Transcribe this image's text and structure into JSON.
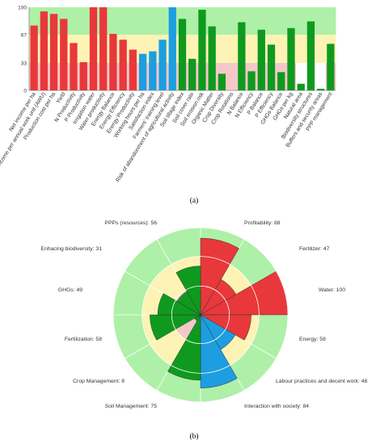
{
  "colors": {
    "red": "#e8383b",
    "green": "#0f9a1f",
    "blue": "#1d9ee0",
    "band_high": "#aef0a8",
    "band_mid": "#fdf3b4",
    "band_low": "#f5c8c8",
    "grid": "#cccccc"
  },
  "chart_data": [
    {
      "type": "bar",
      "caption": "(a)",
      "ylim": [
        0,
        100
      ],
      "yticks": [
        "0",
        "33",
        "67",
        "100"
      ],
      "bands": [
        {
          "from": 67,
          "to": 100,
          "color_key": "band_high"
        },
        {
          "from": 33,
          "to": 67,
          "color_key": "band_mid"
        },
        {
          "from": 0,
          "to": 33,
          "color_key": "band_low"
        }
      ],
      "categories": [
        "Net income per ha",
        "Net income per annual work unit (AWU)",
        "Production cost per ha",
        "Yield",
        "N Productivity",
        "P Productivity",
        "Irrigation water",
        "Water productivity",
        "Energy Balance",
        "Energy Efficiency",
        "Energy Productivity",
        "Working hours per ha",
        "Satisfaction index",
        "Farmers' training level",
        "Risk of abandonment of agricultural activity",
        "Soil tillage index",
        "Soil cover rate",
        "Soil erosion risk",
        "Organic Matter",
        "Crop Diversity",
        "Crop Rotations",
        "N Balance",
        "N Efficiency",
        "P Balance",
        "P Efficiency",
        "GHGs Balance",
        "GHGs per kg",
        "Natural area",
        "Biodiversity structures",
        "Buffers and security areas",
        "PPP management"
      ],
      "values": [
        78,
        95,
        92,
        86,
        57,
        34,
        100,
        100,
        68,
        61,
        49,
        44,
        47,
        61,
        100,
        86,
        38,
        97,
        77,
        20,
        0,
        82,
        23,
        73,
        55,
        22,
        75,
        8,
        83,
        2,
        56
      ],
      "colors": [
        "red",
        "red",
        "red",
        "red",
        "red",
        "red",
        "red",
        "red",
        "red",
        "red",
        "red",
        "blue",
        "blue",
        "blue",
        "blue",
        "green",
        "green",
        "green",
        "green",
        "green",
        "green",
        "green",
        "green",
        "green",
        "green",
        "green",
        "green",
        "green",
        "green",
        "green",
        "green"
      ],
      "band_mask": [
        "full",
        "full",
        "full",
        "full",
        "full",
        "full",
        "full",
        "full",
        "full",
        "full",
        "full",
        "full",
        "full",
        "full",
        "full",
        "full",
        "full",
        "full",
        "full",
        "full",
        "full",
        "full",
        "full",
        "full",
        "full",
        "full",
        "full",
        "no-low",
        "no-low",
        "no-low",
        "full"
      ]
    },
    {
      "type": "polar-area",
      "caption": "(b)",
      "rlim": [
        0,
        100
      ],
      "rings": [
        33,
        67,
        100
      ],
      "categories": [
        "Profitability: 88",
        "Fertilizer: 47",
        "Water: 100",
        "Energy: 58",
        "Labour practices and decent work: 46",
        "Interaction with society: 84",
        "Soil Management: 75",
        "Crop Management: 8",
        "Fertilization: 58",
        "GHGs: 49",
        "Enhacing biodiversity: 31",
        "PPPs (resources): 56"
      ],
      "values": [
        88,
        47,
        100,
        58,
        46,
        84,
        75,
        8,
        58,
        49,
        31,
        56
      ],
      "colors": [
        "red",
        "red",
        "red",
        "red",
        "blue",
        "blue",
        "green",
        "green",
        "green",
        "green",
        "green",
        "green"
      ]
    }
  ]
}
